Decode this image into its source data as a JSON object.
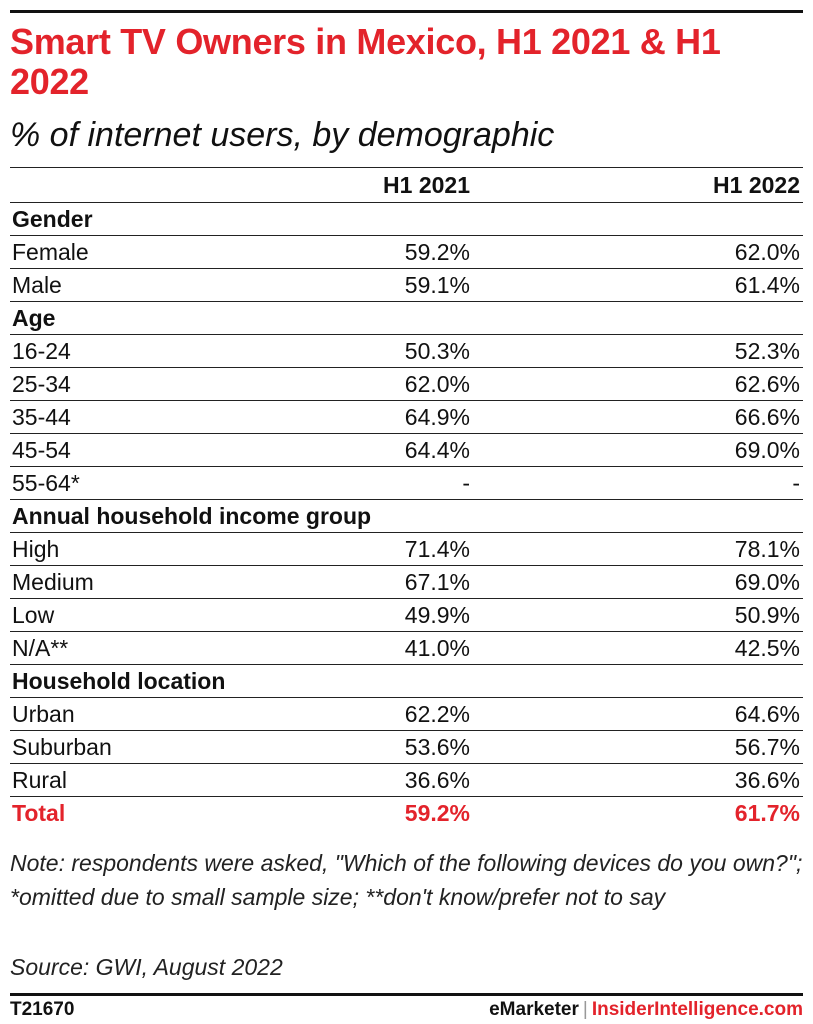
{
  "title": "Smart TV Owners in Mexico, H1 2021 & H1 2022",
  "subtitle": "% of internet users, by demographic",
  "colors": {
    "accent": "#e3232b",
    "text": "#111111",
    "rule": "#111111"
  },
  "chart_data": {
    "type": "table",
    "title": "Smart TV Owners in Mexico, H1 2021 & H1 2022",
    "subtitle": "% of internet users, by demographic",
    "columns": [
      "",
      "H1 2021",
      "H1 2022"
    ],
    "rows": [
      {
        "kind": "section",
        "label": "Gender"
      },
      {
        "kind": "data",
        "label": "Female",
        "h1_2021": "59.2%",
        "h1_2022": "62.0%"
      },
      {
        "kind": "data",
        "label": "Male",
        "h1_2021": "59.1%",
        "h1_2022": "61.4%"
      },
      {
        "kind": "section",
        "label": "Age"
      },
      {
        "kind": "data",
        "label": "16-24",
        "h1_2021": "50.3%",
        "h1_2022": "52.3%"
      },
      {
        "kind": "data",
        "label": "25-34",
        "h1_2021": "62.0%",
        "h1_2022": "62.6%"
      },
      {
        "kind": "data",
        "label": "35-44",
        "h1_2021": "64.9%",
        "h1_2022": "66.6%"
      },
      {
        "kind": "data",
        "label": "45-54",
        "h1_2021": "64.4%",
        "h1_2022": "69.0%"
      },
      {
        "kind": "data",
        "label": "55-64*",
        "h1_2021": "-",
        "h1_2022": "-"
      },
      {
        "kind": "section",
        "label": "Annual household income group"
      },
      {
        "kind": "data",
        "label": "High",
        "h1_2021": "71.4%",
        "h1_2022": "78.1%"
      },
      {
        "kind": "data",
        "label": "Medium",
        "h1_2021": "67.1%",
        "h1_2022": "69.0%"
      },
      {
        "kind": "data",
        "label": "Low",
        "h1_2021": "49.9%",
        "h1_2022": "50.9%"
      },
      {
        "kind": "data",
        "label": "N/A**",
        "h1_2021": "41.0%",
        "h1_2022": "42.5%"
      },
      {
        "kind": "section",
        "label": "Household location"
      },
      {
        "kind": "data",
        "label": "Urban",
        "h1_2021": "62.2%",
        "h1_2022": "64.6%"
      },
      {
        "kind": "data",
        "label": "Suburban",
        "h1_2021": "53.6%",
        "h1_2022": "56.7%"
      },
      {
        "kind": "data",
        "label": "Rural",
        "h1_2021": "36.6%",
        "h1_2022": "36.6%"
      },
      {
        "kind": "total",
        "label": "Total",
        "h1_2021": "59.2%",
        "h1_2022": "61.7%"
      }
    ]
  },
  "note": "Note: respondents were asked, \"Which of the following devices do you own?\"; *omitted due to small sample size; **don't know/prefer not to say",
  "source": "Source: GWI, August 2022",
  "footer": {
    "chart_id": "T21670",
    "brand_a": "eMarketer",
    "separator": "|",
    "brand_b": "InsiderIntelligence.com"
  }
}
